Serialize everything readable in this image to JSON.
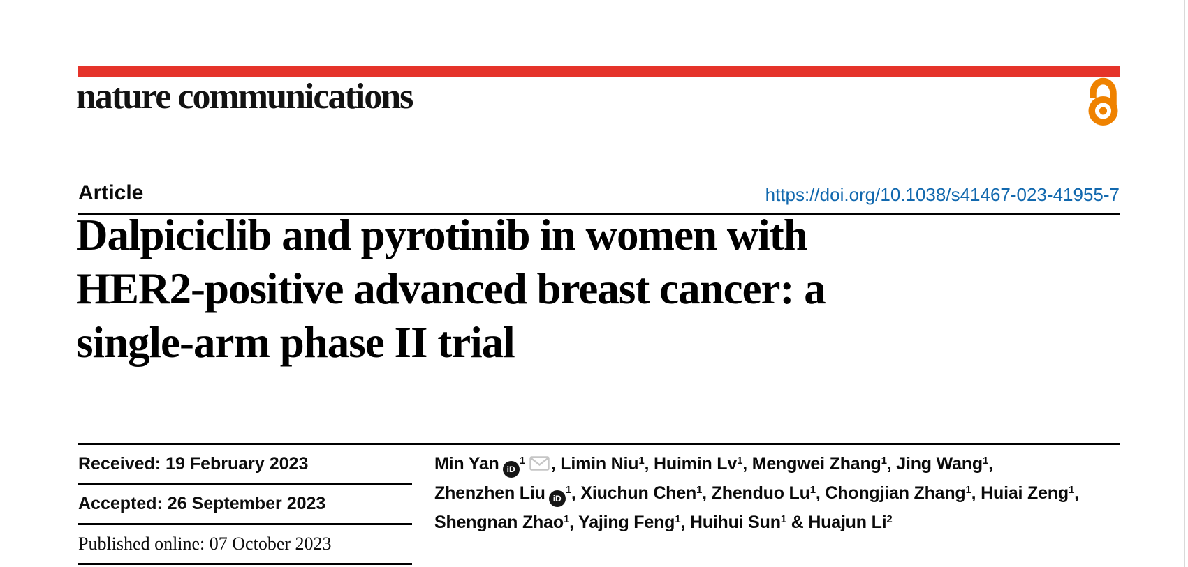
{
  "colors": {
    "brand_red": "#e5332a",
    "link_blue": "#1168ae",
    "open_access_orange": "#ef8200",
    "rule_black": "#000000",
    "page_edge_gray": "#d9d9d9"
  },
  "masthead": {
    "wordmark": "nature communications",
    "open_access_icon": "open-access-icon"
  },
  "article": {
    "kicker": "Article",
    "doi": "https://doi.org/10.1038/s41467-023-41955-7"
  },
  "title": {
    "line1": "Dalpiciclib and pyrotinib in women with",
    "line2": "HER2-positive advanced breast cancer: a",
    "line3": "single-arm phase II trial"
  },
  "dates": {
    "items": [
      {
        "label": "Received:",
        "value": "19 February 2023",
        "font": "sans"
      },
      {
        "label": "Accepted:",
        "value": "26 September 2023",
        "font": "sans"
      },
      {
        "label": "Published online:",
        "value": "07 October 2023",
        "font": "serif"
      }
    ]
  },
  "authors": {
    "icons": {
      "orcid_text": "iD"
    },
    "lines": [
      [
        {
          "name": "Min Yan",
          "orcid": true,
          "sup": "1",
          "email": true,
          "tail": ", "
        },
        {
          "name": "Limin Niu",
          "sup": "1",
          "tail": ", "
        },
        {
          "name": "Huimin Lv",
          "sup": "1",
          "tail": ", "
        },
        {
          "name": "Mengwei Zhang",
          "sup": "1",
          "tail": ", "
        },
        {
          "name": "Jing Wang",
          "sup": "1",
          "tail": ","
        }
      ],
      [
        {
          "name": "Zhenzhen Liu",
          "orcid": true,
          "sup": "1",
          "tail": ", "
        },
        {
          "name": "Xiuchun Chen",
          "sup": "1",
          "tail": ", "
        },
        {
          "name": "Zhenduo Lu",
          "sup": "1",
          "tail": ", "
        },
        {
          "name": "Chongjian Zhang",
          "sup": "1",
          "tail": ", "
        },
        {
          "name": "Huiai Zeng",
          "sup": "1",
          "tail": ","
        }
      ],
      [
        {
          "name": "Shengnan Zhao",
          "sup": "1",
          "tail": ", "
        },
        {
          "name": "Yajing Feng",
          "sup": "1",
          "tail": ", "
        },
        {
          "name": "Huihui Sun",
          "sup": "1",
          "tail": " & "
        },
        {
          "name": "Huajun Li",
          "sup": "2",
          "tail": ""
        }
      ]
    ]
  }
}
